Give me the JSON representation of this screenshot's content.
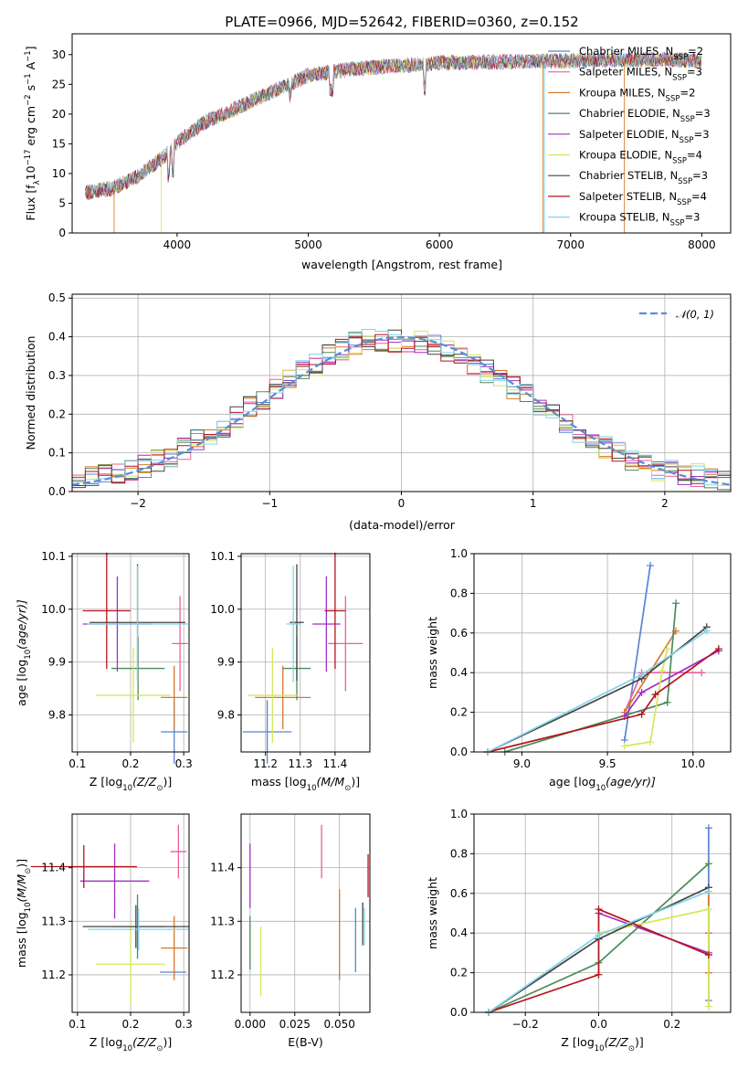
{
  "colors": {
    "Chabrier MILES": "#5b83d3",
    "Salpeter MILES": "#e8619b",
    "Kroupa MILES": "#d9782a",
    "Chabrier ELODIE": "#4f8a5a",
    "Salpeter ELODIE": "#a12fc4",
    "Kroupa ELODIE": "#d3e85b",
    "Chabrier STELIB": "#444444",
    "Salpeter STELIB": "#b4141c",
    "Kroupa STELIB": "#85d3e6",
    "gauss": "#5b8bd6",
    "data": "#808080"
  },
  "chart_data": [
    {
      "type": "line",
      "title": "PLATE=0966, MJD=52642, FIBERID=0360, z=0.152",
      "xlabel": "wavelength [Angstrom, rest frame]",
      "ylabel_main": "Flux [f",
      "ylabel_sub": "λ",
      "ylabel_rest": "10",
      "ylabel_exp": "−17",
      "ylabel_units": " erg cm",
      "ylabel_exp2": "−2",
      "ylabel_units2": " s",
      "ylabel_exp3": "−1",
      "ylabel_units3": " A",
      "ylabel_exp4": "−1",
      "ylabel_end": "]",
      "xlim": [
        3200,
        8220
      ],
      "ylim": [
        0,
        33.5
      ],
      "xticks": [
        4000,
        5000,
        6000,
        7000,
        8000
      ],
      "yticks": [
        0,
        5,
        10,
        15,
        20,
        25,
        30
      ],
      "continuum_x": [
        3300,
        3500,
        3700,
        3900,
        4000,
        4200,
        4500,
        4800,
        5000,
        5300,
        5600,
        6000,
        6500,
        7000,
        7500,
        8000
      ],
      "continuum_y": [
        6.8,
        7.5,
        9.5,
        12.8,
        15.2,
        18.5,
        21.5,
        24.5,
        26.5,
        27.5,
        28.0,
        28.6,
        28.8,
        29.0,
        29.2,
        29.0
      ],
      "legend": [
        {
          "series": "Chabrier MILES",
          "prefix": "Chabrier MILES, N",
          "sub": "SSP",
          "suffix": "=2"
        },
        {
          "series": "Salpeter MILES",
          "prefix": "Salpeter MILES, N",
          "sub": "SSP",
          "suffix": "=3"
        },
        {
          "series": "Kroupa MILES",
          "prefix": "Kroupa MILES, N",
          "sub": "SSP",
          "suffix": "=2"
        },
        {
          "series": "Chabrier ELODIE",
          "prefix": "Chabrier ELODIE, N",
          "sub": "SSP",
          "suffix": "=3"
        },
        {
          "series": "Salpeter ELODIE",
          "prefix": "Salpeter ELODIE, N",
          "sub": "SSP",
          "suffix": "=3"
        },
        {
          "series": "Kroupa ELODIE",
          "prefix": "Kroupa ELODIE, N",
          "sub": "SSP",
          "suffix": "=4"
        },
        {
          "series": "Chabrier STELIB",
          "prefix": "Chabrier STELIB, N",
          "sub": "SSP",
          "suffix": "=3"
        },
        {
          "series": "Salpeter STELIB",
          "prefix": "Salpeter STELIB, N",
          "sub": "SSP",
          "suffix": "=4"
        },
        {
          "series": "Kroupa STELIB",
          "prefix": "Kroupa STELIB, N",
          "sub": "SSP",
          "suffix": "=3"
        }
      ]
    },
    {
      "type": "histogram",
      "xlabel": "(data-model)/error",
      "ylabel": "Normed distribution",
      "xlim": [
        -2.5,
        2.5
      ],
      "ylim": [
        0,
        0.51
      ],
      "xticks": [
        -2,
        -1,
        0,
        1,
        2
      ],
      "yticks": [
        0,
        0.1,
        0.2,
        0.3,
        0.4,
        0.5
      ],
      "bin_width": 0.1,
      "legend": "𝒩(0, 1)",
      "profile_x": [
        -2.5,
        -2.3,
        -2.1,
        -1.9,
        -1.7,
        -1.5,
        -1.3,
        -1.1,
        -0.9,
        -0.7,
        -0.5,
        -0.3,
        -0.1,
        0.1,
        0.3,
        0.5,
        0.7,
        0.9,
        1.1,
        1.3,
        1.5,
        1.7,
        1.9,
        2.1,
        2.3,
        2.5
      ],
      "profile_y": [
        0.03,
        0.04,
        0.05,
        0.07,
        0.1,
        0.14,
        0.18,
        0.23,
        0.28,
        0.32,
        0.36,
        0.39,
        0.39,
        0.39,
        0.37,
        0.34,
        0.3,
        0.26,
        0.21,
        0.16,
        0.12,
        0.09,
        0.06,
        0.05,
        0.04,
        0.02
      ]
    },
    {
      "type": "scatter",
      "name": "age_vs_Z",
      "xlabel": "Z [log",
      "xlabel_sub": "10",
      "xlabel_rest": "(Z/Z",
      "xlabel_sub2": "⊙",
      "xlabel_end": ")]",
      "ylabel": "age  [log",
      "ylabel_sub": "10",
      "ylabel_rest": "(age/yr)]",
      "xlim": [
        0.09,
        0.31
      ],
      "ylim": [
        9.73,
        10.105
      ],
      "xticks": [
        0.1,
        0.2,
        0.3
      ],
      "yticks": [
        9.8,
        9.9,
        10.0,
        10.1
      ],
      "points": [
        {
          "series": "Chabrier MILES",
          "x": 0.282,
          "y": 9.768,
          "xerr": 0.025,
          "yerr": 0.06
        },
        {
          "series": "Salpeter MILES",
          "x": 0.293,
          "y": 9.935,
          "xerr": 0.015,
          "yerr": 0.09
        },
        {
          "series": "Kroupa MILES",
          "x": 0.282,
          "y": 9.833,
          "xerr": 0.025,
          "yerr": 0.06
        },
        {
          "series": "Chabrier ELODIE",
          "x": 0.214,
          "y": 9.888,
          "xerr": 0.05,
          "yerr": 0.06
        },
        {
          "series": "Salpeter ELODIE",
          "x": 0.175,
          "y": 9.972,
          "xerr": 0.065,
          "yerr": 0.09
        },
        {
          "series": "Kroupa ELODIE",
          "x": 0.205,
          "y": 9.837,
          "xerr": 0.07,
          "yerr": 0.09
        },
        {
          "series": "Chabrier STELIB",
          "x": 0.213,
          "y": 9.975,
          "xerr": 0.09,
          "yerr": 0.11
        },
        {
          "series": "Salpeter STELIB",
          "x": 0.155,
          "y": 9.997,
          "xerr": 0.045,
          "yerr": 0.11
        },
        {
          "series": "Kroupa STELIB",
          "x": 0.213,
          "y": 9.972,
          "xerr": 0.095,
          "yerr": 0.11
        }
      ]
    },
    {
      "type": "scatter",
      "name": "age_vs_mass",
      "xlabel": "mass [log",
      "xlabel_sub": "10",
      "xlabel_rest": "(M/M",
      "xlabel_sub2": "⊙",
      "xlabel_end": ")]",
      "xlim": [
        11.13,
        11.5
      ],
      "ylim": [
        9.73,
        10.105
      ],
      "xticks": [
        11.2,
        11.3,
        11.4
      ],
      "yticks": [
        9.8,
        9.9,
        10.0,
        10.1
      ],
      "points": [
        {
          "series": "Chabrier MILES",
          "x": 11.205,
          "y": 9.768,
          "xerr": 0.07,
          "yerr": 0.06
        },
        {
          "series": "Salpeter MILES",
          "x": 11.43,
          "y": 9.935,
          "xerr": 0.05,
          "yerr": 0.09
        },
        {
          "series": "Kroupa MILES",
          "x": 11.25,
          "y": 9.833,
          "xerr": 0.08,
          "yerr": 0.06
        },
        {
          "series": "Chabrier ELODIE",
          "x": 11.29,
          "y": 9.888,
          "xerr": 0.04,
          "yerr": 0.06
        },
        {
          "series": "Salpeter ELODIE",
          "x": 11.375,
          "y": 9.972,
          "xerr": 0.04,
          "yerr": 0.09
        },
        {
          "series": "Kroupa ELODIE",
          "x": 11.22,
          "y": 9.837,
          "xerr": 0.07,
          "yerr": 0.09
        },
        {
          "series": "Chabrier STELIB",
          "x": 11.29,
          "y": 9.975,
          "xerr": 0.02,
          "yerr": 0.11
        },
        {
          "series": "Salpeter STELIB",
          "x": 11.4,
          "y": 9.997,
          "xerr": 0.03,
          "yerr": 0.11
        },
        {
          "series": "Kroupa STELIB",
          "x": 11.28,
          "y": 9.972,
          "xerr": 0.02,
          "yerr": 0.11
        }
      ]
    },
    {
      "type": "line",
      "name": "mass_weight_vs_age",
      "xlabel": "age  [log",
      "xlabel_sub": "10",
      "xlabel_rest": "(age/yr)]",
      "ylabel": "mass weight",
      "xlim": [
        8.72,
        10.22
      ],
      "ylim": [
        0,
        1
      ],
      "xticks": [
        9.0,
        9.5,
        10.0
      ],
      "yticks": [
        0,
        0.2,
        0.4,
        0.6,
        0.8,
        1.0
      ],
      "series": [
        {
          "name": "Chabrier MILES",
          "x": [
            9.6,
            9.75
          ],
          "y": [
            0.06,
            0.94
          ]
        },
        {
          "name": "Salpeter MILES",
          "x": [
            9.6,
            9.7,
            10.05
          ],
          "y": [
            0.2,
            0.4,
            0.4
          ]
        },
        {
          "name": "Kroupa MILES",
          "x": [
            9.6,
            9.9
          ],
          "y": [
            0.2,
            0.61
          ]
        },
        {
          "name": "Chabrier ELODIE",
          "x": [
            8.9,
            9.85,
            9.9
          ],
          "y": [
            0.0,
            0.25,
            0.75
          ]
        },
        {
          "name": "Salpeter ELODIE",
          "x": [
            9.6,
            9.7,
            10.15
          ],
          "y": [
            0.18,
            0.3,
            0.51
          ]
        },
        {
          "name": "Kroupa ELODIE",
          "x": [
            9.6,
            9.75,
            9.82,
            9.85
          ],
          "y": [
            0.03,
            0.05,
            0.41,
            0.52
          ]
        },
        {
          "name": "Chabrier STELIB",
          "x": [
            8.8,
            9.7,
            10.08
          ],
          "y": [
            0.0,
            0.37,
            0.63
          ]
        },
        {
          "name": "Salpeter STELIB",
          "x": [
            8.8,
            9.7,
            9.78,
            10.15
          ],
          "y": [
            0.0,
            0.19,
            0.29,
            0.52
          ]
        },
        {
          "name": "Kroupa STELIB",
          "x": [
            8.8,
            9.7,
            10.08
          ],
          "y": [
            0.0,
            0.39,
            0.61
          ]
        }
      ]
    },
    {
      "type": "scatter",
      "name": "mass_vs_Z",
      "xlabel": "Z [log",
      "xlabel_sub": "10",
      "xlabel_rest": "(Z/Z",
      "xlabel_sub2": "⊙",
      "xlabel_end": ")]",
      "ylabel": "mass [log",
      "ylabel_sub": "10",
      "ylabel_rest": "(M/M",
      "ylabel_sub2": "⊙",
      "ylabel_end": ")]",
      "xlim": [
        0.09,
        0.31
      ],
      "ylim": [
        11.13,
        11.5
      ],
      "xticks": [
        0.1,
        0.2,
        0.3
      ],
      "yticks": [
        11.2,
        11.3,
        11.4
      ],
      "points": [
        {
          "series": "Chabrier MILES",
          "x": 0.28,
          "y": 11.205,
          "xerr": 0.025,
          "yerr": 0.0
        },
        {
          "series": "Salpeter MILES",
          "x": 0.29,
          "y": 11.43,
          "xerr": 0.015,
          "yerr": 0.05
        },
        {
          "series": "Kroupa MILES",
          "x": 0.282,
          "y": 11.25,
          "xerr": 0.025,
          "yerr": 0.06
        },
        {
          "series": "Chabrier ELODIE",
          "x": 0.213,
          "y": 11.29,
          "xerr": 0.05,
          "yerr": 0.06
        },
        {
          "series": "Salpeter ELODIE",
          "x": 0.17,
          "y": 11.375,
          "xerr": 0.065,
          "yerr": 0.07
        },
        {
          "series": "Kroupa ELODIE",
          "x": 0.2,
          "y": 11.22,
          "xerr": 0.065,
          "yerr": 0.075
        },
        {
          "series": "Chabrier STELIB",
          "x": 0.21,
          "y": 11.29,
          "xerr": 0.1,
          "yerr": 0.04
        },
        {
          "series": "Salpeter STELIB",
          "x": 0.112,
          "y": 11.402,
          "xerr": 0.1,
          "yerr": 0.04
        },
        {
          "series": "Kroupa STELIB",
          "x": 0.215,
          "y": 11.285,
          "xerr": 0.095,
          "yerr": 0.04
        }
      ]
    },
    {
      "type": "scatter",
      "name": "mass_vs_EBV",
      "xlabel": "E(B-V)",
      "xlim": [
        -0.005,
        0.067
      ],
      "ylim": [
        11.13,
        11.5
      ],
      "xticks": [
        0.0,
        0.025,
        0.05
      ],
      "xticklabels": [
        "0.000",
        "0.025",
        "0.050"
      ],
      "yticks": [
        11.2,
        11.3,
        11.4
      ],
      "points": [
        {
          "series": "Chabrier MILES",
          "x": 0.059,
          "y": 11.265,
          "yerr": 0.06
        },
        {
          "series": "Salpeter MILES",
          "x": 0.04,
          "y": 11.43,
          "yerr": 0.05
        },
        {
          "series": "Kroupa MILES",
          "x": 0.05,
          "y": 11.275,
          "yerr": 0.085
        },
        {
          "series": "Chabrier ELODIE",
          "x": 0.0,
          "y": 11.26,
          "yerr": 0.05
        },
        {
          "series": "Salpeter ELODIE",
          "x": 0.0,
          "y": 11.385,
          "yerr": 0.06
        },
        {
          "series": "Kroupa ELODIE",
          "x": 0.006,
          "y": 11.225,
          "yerr": 0.065
        },
        {
          "series": "Chabrier STELIB",
          "x": 0.063,
          "y": 11.295,
          "yerr": 0.04
        },
        {
          "series": "Salpeter STELIB",
          "x": 0.066,
          "y": 11.385,
          "yerr": 0.04
        },
        {
          "series": "Kroupa STELIB",
          "x": 0.064,
          "y": 11.29,
          "yerr": 0.035
        }
      ]
    },
    {
      "type": "line",
      "name": "mass_weight_vs_Z",
      "xlabel": "Z [log",
      "xlabel_sub": "10",
      "xlabel_rest": "(Z/Z",
      "xlabel_sub2": "⊙",
      "xlabel_end": ")]",
      "ylabel": "mass weight",
      "xlim": [
        -0.34,
        0.36
      ],
      "ylim": [
        0,
        1
      ],
      "xticks": [
        -0.2,
        0.0,
        0.2
      ],
      "xticklabels": [
        "−0.2",
        "0.0",
        "0.2"
      ],
      "yticks": [
        0,
        0.2,
        0.4,
        0.6,
        0.8,
        1.0
      ],
      "series": [
        {
          "name": "Chabrier MILES",
          "x": [
            0.3,
            0.3
          ],
          "y": [
            0.06,
            0.93
          ]
        },
        {
          "name": "Salpeter MILES",
          "x": [
            0.3,
            0.3,
            0.3
          ],
          "y": [
            0.2,
            0.4,
            0.4
          ]
        },
        {
          "name": "Kroupa MILES",
          "x": [
            0.3,
            0.3
          ],
          "y": [
            0.2,
            0.61
          ]
        },
        {
          "name": "Chabrier ELODIE",
          "x": [
            -0.3,
            0.0,
            0.3
          ],
          "y": [
            0.0,
            0.25,
            0.75
          ]
        },
        {
          "name": "Salpeter ELODIE",
          "x": [
            0.0,
            0.3
          ],
          "y": [
            0.5,
            0.3
          ]
        },
        {
          "name": "Kroupa ELODIE",
          "x": [
            0.0,
            0.3,
            0.3
          ],
          "y": [
            0.4,
            0.52,
            0.03
          ]
        },
        {
          "name": "Chabrier STELIB",
          "x": [
            -0.3,
            0.0,
            0.3
          ],
          "y": [
            0.0,
            0.37,
            0.63
          ]
        },
        {
          "name": "Salpeter STELIB",
          "x": [
            -0.3,
            0.0,
            0.0,
            0.3
          ],
          "y": [
            0.0,
            0.19,
            0.52,
            0.29
          ]
        },
        {
          "name": "Kroupa STELIB",
          "x": [
            -0.3,
            0.0,
            0.3
          ],
          "y": [
            0.0,
            0.39,
            0.61
          ]
        }
      ]
    }
  ]
}
